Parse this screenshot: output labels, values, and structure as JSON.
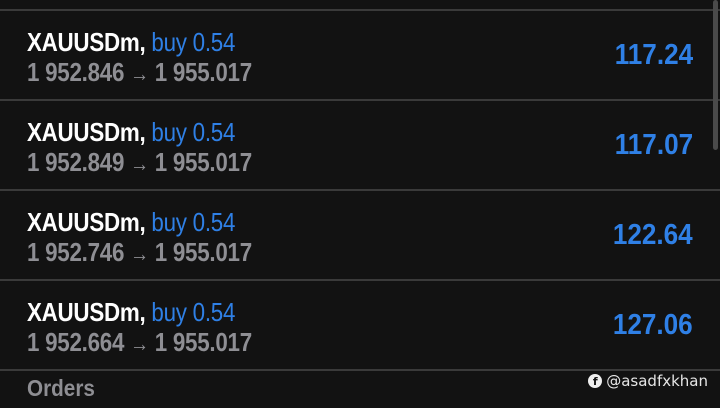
{
  "positions": [
    {
      "symbol": "XAUUSDm,",
      "side": "buy 0.54",
      "open": "1 952.846",
      "arrow": "→",
      "current": "1 955.017",
      "profit": "117.24"
    },
    {
      "symbol": "XAUUSDm,",
      "side": "buy 0.54",
      "open": "1 952.849",
      "arrow": "→",
      "current": "1 955.017",
      "profit": "117.07"
    },
    {
      "symbol": "XAUUSDm,",
      "side": "buy 0.54",
      "open": "1 952.746",
      "arrow": "→",
      "current": "1 955.017",
      "profit": "122.64"
    },
    {
      "symbol": "XAUUSDm,",
      "side": "buy 0.54",
      "open": "1 952.664",
      "arrow": "→",
      "current": "1 955.017",
      "profit": "127.06"
    }
  ],
  "orders_label": "Orders",
  "watermark": {
    "icon": "facebook-icon",
    "text": "@asadfxkhan"
  },
  "colors": {
    "accent": "#2f80e6",
    "background": "#121212",
    "muted": "#8e8e93"
  }
}
